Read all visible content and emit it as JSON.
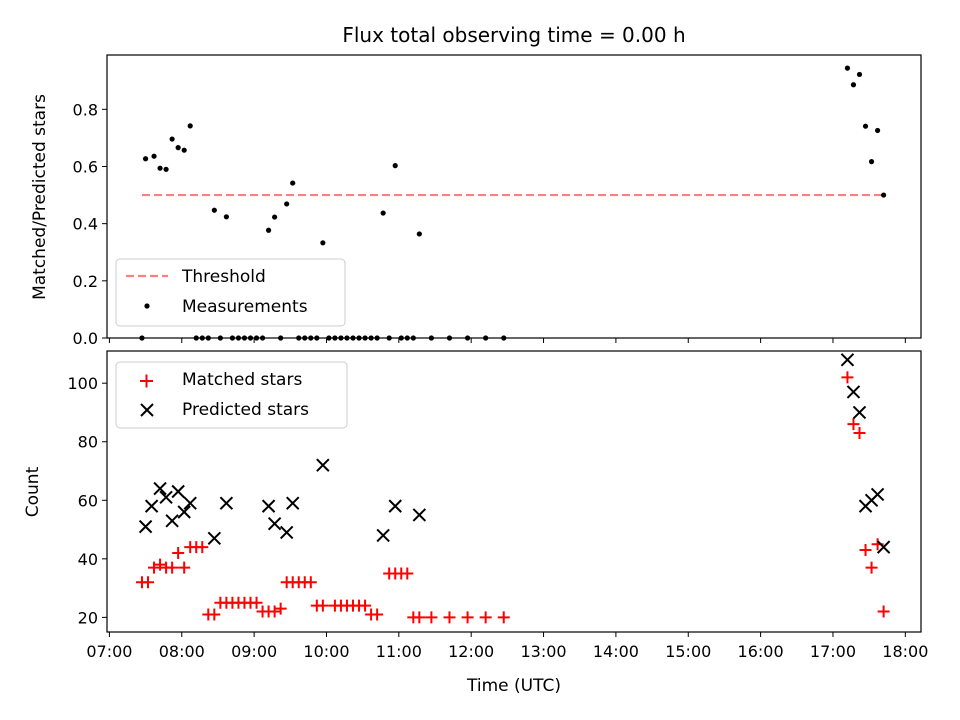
{
  "chart_data": {
    "type": "scatter",
    "title": "Flux total observing time = 0.00 h",
    "xlabel": "Time (UTC)",
    "x_ticks": [
      "07:00",
      "08:00",
      "09:00",
      "10:00",
      "11:00",
      "12:00",
      "13:00",
      "14:00",
      "15:00",
      "16:00",
      "17:00",
      "18:00"
    ],
    "xlim": [
      "06:58",
      "18:13"
    ],
    "panels": [
      {
        "name": "ratio",
        "ylabel": "Matched/Predicted stars",
        "ylim": [
          0,
          0.99
        ],
        "y_ticks": [
          "0.0",
          "0.2",
          "0.4",
          "0.6",
          "0.8"
        ],
        "y_tick_values": [
          0,
          0.2,
          0.4,
          0.6,
          0.8
        ],
        "legend_location": "lower-left",
        "series": [
          {
            "name": "Threshold",
            "kind": "dashed-line",
            "color": "#ff7f7f",
            "points": [
              [
                "07:27",
                0.5
              ],
              [
                "17:42",
                0.5
              ]
            ]
          },
          {
            "name": "Measurements",
            "kind": "dot",
            "color": "#000000",
            "points": [
              [
                "07:27",
                0.0
              ],
              [
                "07:30",
                0.627
              ],
              [
                "07:37",
                0.636
              ],
              [
                "07:42",
                0.594
              ],
              [
                "07:47",
                0.59
              ],
              [
                "07:52",
                0.696
              ],
              [
                "07:57",
                0.666
              ],
              [
                "08:02",
                0.657
              ],
              [
                "08:07",
                0.742
              ],
              [
                "08:12",
                0.0
              ],
              [
                "08:17",
                0.0
              ],
              [
                "08:22",
                0.0
              ],
              [
                "08:27",
                0.447
              ],
              [
                "08:32",
                0.0
              ],
              [
                "08:37",
                0.424
              ],
              [
                "08:42",
                0.0
              ],
              [
                "08:47",
                0.0
              ],
              [
                "08:52",
                0.0
              ],
              [
                "08:57",
                0.0
              ],
              [
                "09:02",
                0.0
              ],
              [
                "09:07",
                0.0
              ],
              [
                "09:12",
                0.377
              ],
              [
                "09:17",
                0.423
              ],
              [
                "09:22",
                0.0
              ],
              [
                "09:27",
                0.469
              ],
              [
                "09:32",
                0.542
              ],
              [
                "09:37",
                0.0
              ],
              [
                "09:42",
                0.0
              ],
              [
                "09:47",
                0.0
              ],
              [
                "09:52",
                0.0
              ],
              [
                "09:57",
                0.333
              ],
              [
                "10:02",
                0.0
              ],
              [
                "10:07",
                0.0
              ],
              [
                "10:12",
                0.0
              ],
              [
                "10:17",
                0.0
              ],
              [
                "10:22",
                0.0
              ],
              [
                "10:27",
                0.0
              ],
              [
                "10:32",
                0.0
              ],
              [
                "10:37",
                0.0
              ],
              [
                "10:42",
                0.0
              ],
              [
                "10:47",
                0.437
              ],
              [
                "10:52",
                0.0
              ],
              [
                "10:57",
                0.603
              ],
              [
                "11:02",
                0.0
              ],
              [
                "11:07",
                0.0
              ],
              [
                "11:12",
                0.0
              ],
              [
                "11:17",
                0.364
              ],
              [
                "11:27",
                0.0
              ],
              [
                "11:42",
                0.0
              ],
              [
                "11:57",
                0.0
              ],
              [
                "12:12",
                0.0
              ],
              [
                "12:27",
                0.0
              ],
              [
                "17:12",
                0.944
              ],
              [
                "17:17",
                0.886
              ],
              [
                "17:22",
                0.922
              ],
              [
                "17:27",
                0.741
              ],
              [
                "17:32",
                0.617
              ],
              [
                "17:37",
                0.726
              ],
              [
                "17:42",
                0.5
              ]
            ]
          }
        ]
      },
      {
        "name": "counts",
        "ylabel": "Count",
        "ylim": [
          15,
          111
        ],
        "y_ticks": [
          "20",
          "40",
          "60",
          "80",
          "100"
        ],
        "y_tick_values": [
          20,
          40,
          60,
          80,
          100
        ],
        "legend_location": "upper-left",
        "series": [
          {
            "name": "Matched stars",
            "kind": "plus",
            "color": "#ff0000",
            "points": [
              [
                "07:27",
                32
              ],
              [
                "07:32",
                32
              ],
              [
                "07:37",
                37
              ],
              [
                "07:42",
                38
              ],
              [
                "07:47",
                37
              ],
              [
                "07:52",
                37
              ],
              [
                "07:57",
                42
              ],
              [
                "08:02",
                37
              ],
              [
                "08:07",
                44
              ],
              [
                "08:12",
                44
              ],
              [
                "08:17",
                44
              ],
              [
                "08:22",
                21
              ],
              [
                "08:27",
                21
              ],
              [
                "08:32",
                25
              ],
              [
                "08:37",
                25
              ],
              [
                "08:42",
                25
              ],
              [
                "08:47",
                25
              ],
              [
                "08:52",
                25
              ],
              [
                "08:57",
                25
              ],
              [
                "09:02",
                25
              ],
              [
                "09:07",
                22
              ],
              [
                "09:12",
                22
              ],
              [
                "09:17",
                22
              ],
              [
                "09:22",
                23
              ],
              [
                "09:27",
                32
              ],
              [
                "09:32",
                32
              ],
              [
                "09:37",
                32
              ],
              [
                "09:42",
                32
              ],
              [
                "09:47",
                32
              ],
              [
                "09:52",
                24
              ],
              [
                "09:57",
                24
              ],
              [
                "10:07",
                24
              ],
              [
                "10:12",
                24
              ],
              [
                "10:17",
                24
              ],
              [
                "10:22",
                24
              ],
              [
                "10:27",
                24
              ],
              [
                "10:32",
                24
              ],
              [
                "10:37",
                21
              ],
              [
                "10:42",
                21
              ],
              [
                "10:52",
                35
              ],
              [
                "10:57",
                35
              ],
              [
                "11:02",
                35
              ],
              [
                "11:07",
                35
              ],
              [
                "11:12",
                20
              ],
              [
                "11:17",
                20
              ],
              [
                "11:27",
                20
              ],
              [
                "11:42",
                20
              ],
              [
                "11:57",
                20
              ],
              [
                "12:12",
                20
              ],
              [
                "12:27",
                20
              ],
              [
                "17:12",
                102
              ],
              [
                "17:17",
                86
              ],
              [
                "17:22",
                83
              ],
              [
                "17:27",
                43
              ],
              [
                "17:32",
                37
              ],
              [
                "17:37",
                45
              ],
              [
                "17:42",
                22
              ]
            ]
          },
          {
            "name": "Predicted stars",
            "kind": "x",
            "color": "#000000",
            "points": [
              [
                "07:30",
                51
              ],
              [
                "07:35",
                58
              ],
              [
                "07:42",
                64
              ],
              [
                "07:47",
                61
              ],
              [
                "07:52",
                53
              ],
              [
                "07:57",
                63
              ],
              [
                "08:02",
                56
              ],
              [
                "08:07",
                59
              ],
              [
                "08:27",
                47
              ],
              [
                "08:37",
                59
              ],
              [
                "09:12",
                58
              ],
              [
                "09:17",
                52
              ],
              [
                "09:27",
                49
              ],
              [
                "09:32",
                59
              ],
              [
                "09:57",
                72
              ],
              [
                "10:47",
                48
              ],
              [
                "10:57",
                58
              ],
              [
                "11:17",
                55
              ],
              [
                "17:12",
                108
              ],
              [
                "17:17",
                97
              ],
              [
                "17:22",
                90
              ],
              [
                "17:27",
                58
              ],
              [
                "17:32",
                60
              ],
              [
                "17:37",
                62
              ],
              [
                "17:42",
                44
              ]
            ]
          }
        ]
      }
    ]
  }
}
